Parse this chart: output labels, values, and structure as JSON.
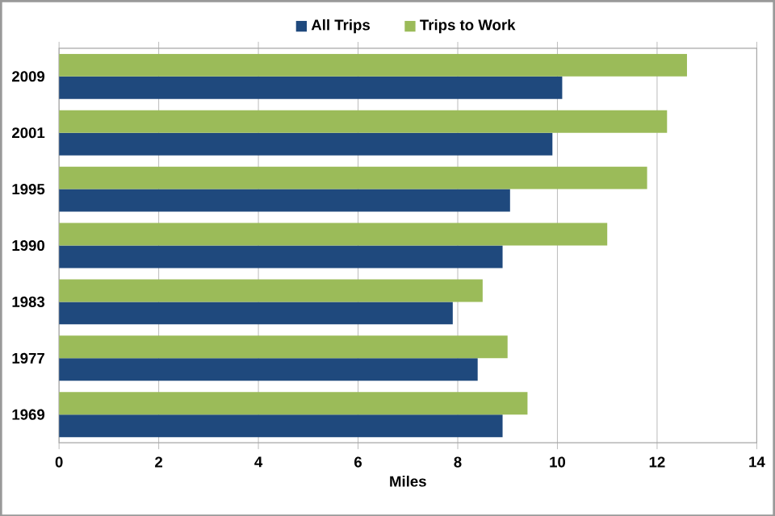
{
  "chart_data": {
    "type": "bar",
    "orientation": "horizontal",
    "xlabel": "Miles",
    "categories": [
      "2009",
      "2001",
      "1995",
      "1990",
      "1983",
      "1977",
      "1969"
    ],
    "series": [
      {
        "name": "All Trips",
        "color": "#1f497d",
        "values": [
          10.1,
          9.9,
          9.05,
          8.9,
          7.9,
          8.4,
          8.9
        ]
      },
      {
        "name": "Trips to Work",
        "color": "#9bbb59",
        "values": [
          12.6,
          12.2,
          11.8,
          11.0,
          8.5,
          9.0,
          9.4
        ]
      }
    ],
    "xlim": [
      0,
      14
    ],
    "xticks": [
      0,
      2,
      4,
      6,
      8,
      10,
      12,
      14
    ],
    "grid": "x",
    "legend": "top"
  }
}
